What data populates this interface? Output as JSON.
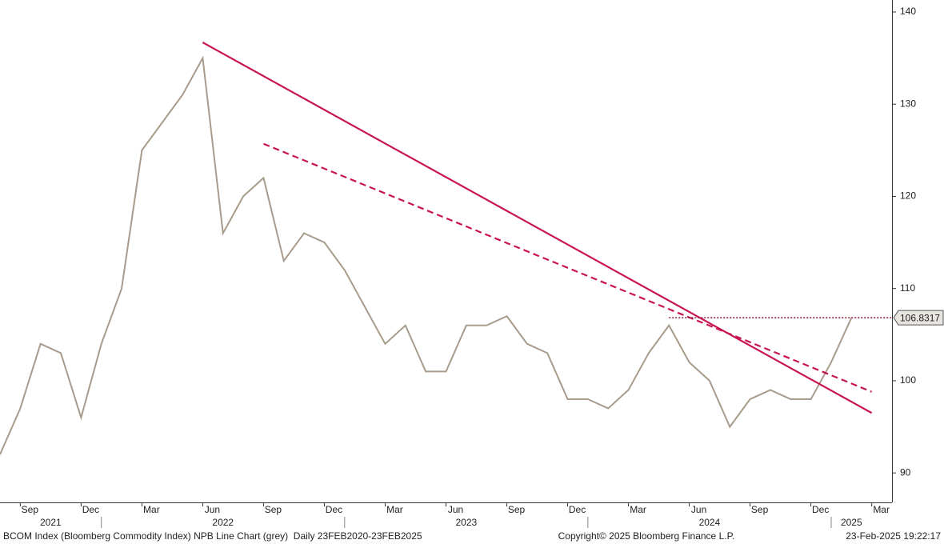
{
  "chart_data": {
    "type": "line",
    "x": [
      "2021-08",
      "2021-09",
      "2021-10",
      "2021-11",
      "2021-12",
      "2022-01",
      "2022-02",
      "2022-03",
      "2022-04",
      "2022-05",
      "2022-06",
      "2022-07",
      "2022-08",
      "2022-09",
      "2022-10",
      "2022-11",
      "2022-12",
      "2023-01",
      "2023-02",
      "2023-03",
      "2023-04",
      "2023-05",
      "2023-06",
      "2023-07",
      "2023-08",
      "2023-09",
      "2023-10",
      "2023-11",
      "2023-12",
      "2024-01",
      "2024-02",
      "2024-03",
      "2024-04",
      "2024-05",
      "2024-06",
      "2024-07",
      "2024-08",
      "2024-09",
      "2024-10",
      "2024-11",
      "2024-12",
      "2025-01",
      "2025-02"
    ],
    "series": [
      {
        "color": "#a89b8c",
        "style": "solid",
        "values": [
          92,
          97,
          104,
          103,
          96,
          104,
          110,
          125,
          128,
          131,
          135,
          116,
          120,
          122,
          113,
          116,
          115,
          112,
          108,
          104,
          106,
          101,
          101,
          106,
          106,
          107,
          104,
          103,
          98,
          98,
          97,
          99,
          103,
          106,
          102,
          100,
          95,
          98,
          99,
          98,
          98,
          102,
          106.8317
        ]
      },
      {
        "color": "#c8154f",
        "style": "trend",
        "x": [
          "2022-06",
          "2025-03"
        ],
        "values": [
          136.7,
          96.5
        ]
      },
      {
        "color": "#c8154f",
        "style": "dashed",
        "x": [
          "2022-09",
          "2025-03"
        ],
        "values": [
          125.7,
          98.8
        ]
      }
    ],
    "last_value": 106.8317,
    "last_value_from": "2024-05",
    "xlim": [
      "2021-08",
      "2025-04"
    ],
    "xticks": [
      {
        "value": "2021-09",
        "label": "Sep"
      },
      {
        "value": "2021-12",
        "label": "Dec"
      },
      {
        "value": "2022-03",
        "label": "Mar"
      },
      {
        "value": "2022-06",
        "label": "Jun"
      },
      {
        "value": "2022-09",
        "label": "Sep"
      },
      {
        "value": "2022-12",
        "label": "Dec"
      },
      {
        "value": "2023-03",
        "label": "Mar"
      },
      {
        "value": "2023-06",
        "label": "Jun"
      },
      {
        "value": "2023-09",
        "label": "Sep"
      },
      {
        "value": "2023-12",
        "label": "Dec"
      },
      {
        "value": "2024-03",
        "label": "Mar"
      },
      {
        "value": "2024-06",
        "label": "Jun"
      },
      {
        "value": "2024-09",
        "label": "Sep"
      },
      {
        "value": "2024-12",
        "label": "Dec"
      },
      {
        "value": "2025-03",
        "label": "Mar"
      }
    ],
    "years": [
      "2021",
      "2022",
      "2023",
      "2024",
      "2025"
    ],
    "ylim": [
      86.8,
      141.3
    ],
    "yticks": [
      90,
      100,
      110,
      120,
      130,
      140
    ],
    "footer_left": "BCOM Index (Bloomberg Commodity Index) NPB Line Chart (grey)  Daily 23FEB2020-23FEB2025",
    "footer_center": "Copyright© 2025 Bloomberg Finance L.P.",
    "footer_right": "23-Feb-2025 19:22:17"
  }
}
